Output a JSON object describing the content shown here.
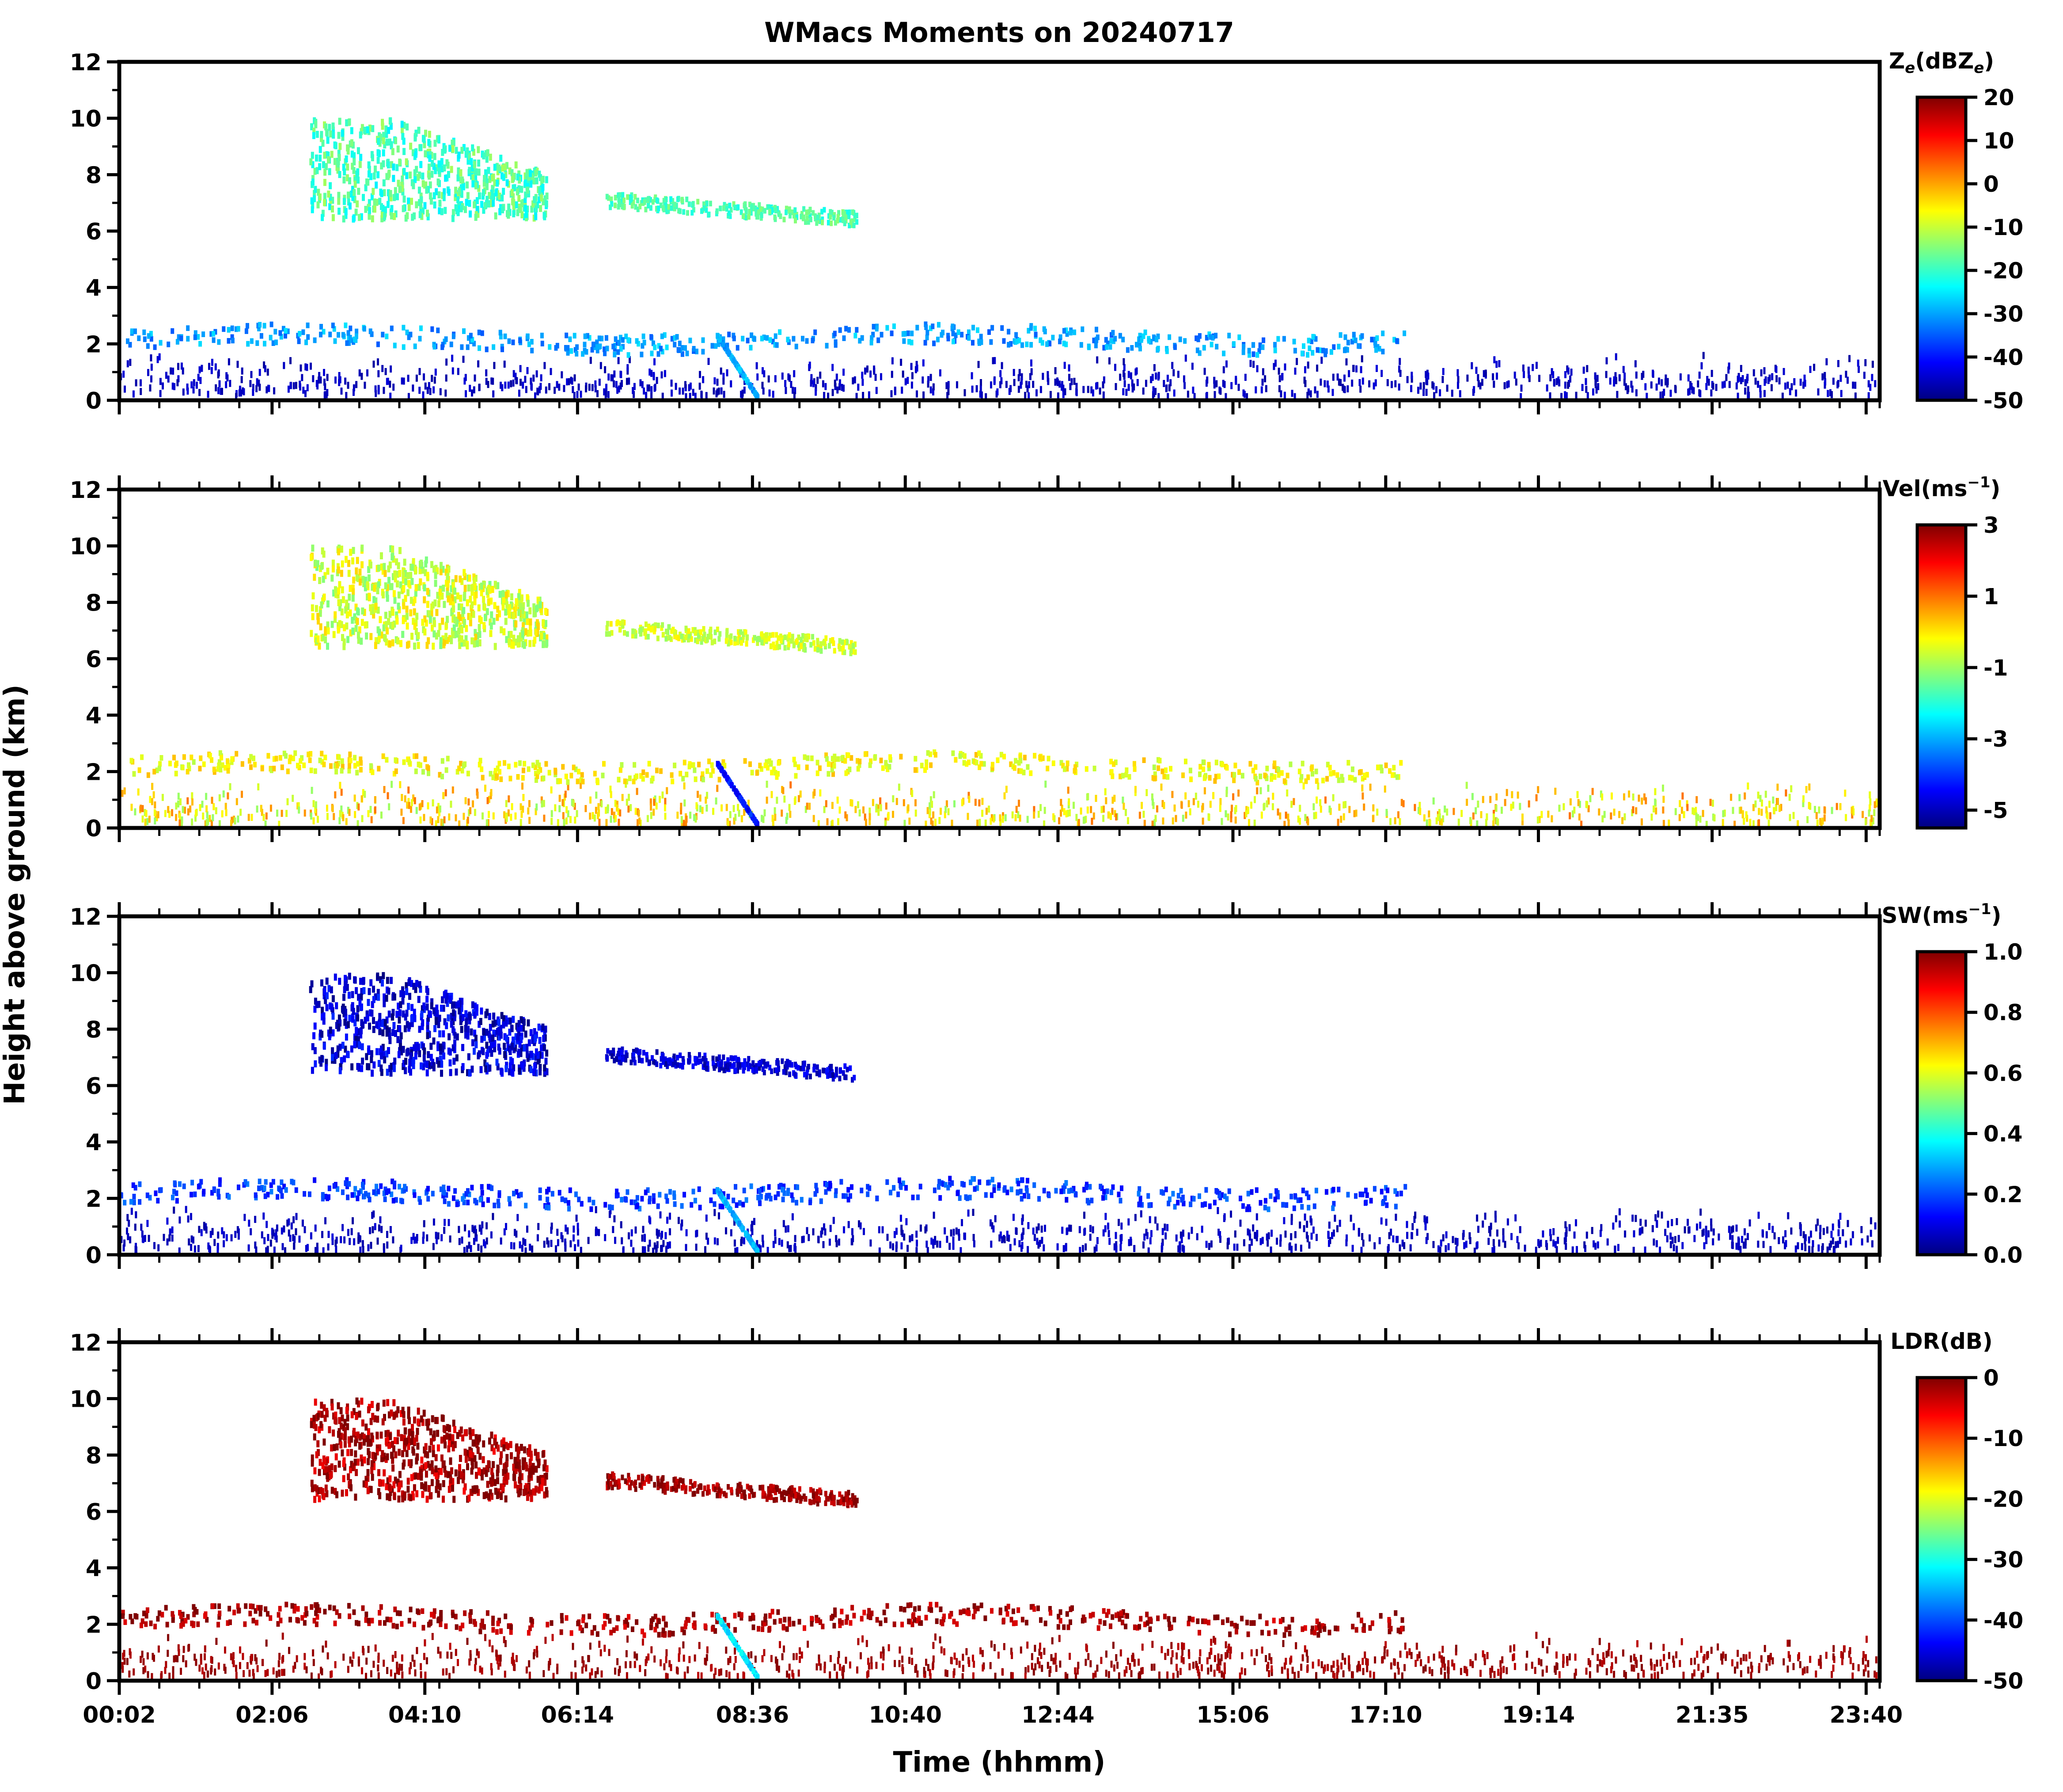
{
  "chart_data": {
    "type": "heatmap",
    "title": "WMacs Moments on 20240717",
    "xlabel": "Time (hhmm)",
    "ylabel": "Height above ground (km)",
    "x_tick_labels": [
      "00:02",
      "02:06",
      "04:10",
      "06:14",
      "08:36",
      "10:40",
      "12:44",
      "15:06",
      "17:10",
      "19:14",
      "21:35",
      "23:40"
    ],
    "x_tick_hours": [
      0.033,
      2.1,
      4.167,
      6.233,
      8.6,
      10.667,
      12.733,
      15.1,
      17.167,
      19.233,
      21.583,
      23.667
    ],
    "x_range_hours": [
      0.033,
      23.85
    ],
    "ylim": [
      0,
      12
    ],
    "y_ticks": [
      0,
      2,
      4,
      6,
      8,
      10,
      12
    ],
    "panels": [
      {
        "name": "Ze",
        "colorbar_label": "Z",
        "colorbar_sub": "e",
        "colorbar_mid": "(dBZ",
        "colorbar_sub2": "e",
        "colorbar_end": ")",
        "range": [
          -50,
          20
        ],
        "ticks": [
          "20",
          "10",
          "0",
          "-10",
          "-20",
          "-30",
          "-40",
          "-50"
        ]
      },
      {
        "name": "Vel",
        "colorbar_label": "Vel(ms",
        "colorbar_sup": "−1",
        "colorbar_end": ")",
        "range": [
          -5.5,
          3
        ],
        "ticks": [
          "3",
          "1",
          "-1",
          "-3",
          "-5"
        ]
      },
      {
        "name": "SW",
        "colorbar_label": "SW(ms",
        "colorbar_sup": "−1",
        "colorbar_end": ")",
        "range": [
          0,
          1
        ],
        "ticks": [
          "1.0",
          "0.8",
          "0.6",
          "0.4",
          "0.2",
          "0.0"
        ]
      },
      {
        "name": "LDR",
        "colorbar_label": "LDR(dB)",
        "range": [
          -50,
          0
        ],
        "ticks": [
          "0",
          "-10",
          "-20",
          "-30",
          "-40",
          "-50"
        ]
      }
    ],
    "colormap": "jet",
    "colormap_stops": [
      "#00007f",
      "#0000ff",
      "#007fff",
      "#00ffff",
      "#7fff7f",
      "#ffff00",
      "#ff7f00",
      "#ff0000",
      "#7f0000"
    ],
    "features": [
      {
        "desc": "upper cloud",
        "x": [
          2.6,
          5.8
        ],
        "y": [
          6.2,
          10
        ]
      },
      {
        "desc": "cloud tail",
        "x": [
          6.6,
          10.0
        ],
        "y": [
          6.0,
          7.2
        ]
      },
      {
        "desc": "mid layer",
        "x": [
          0.0,
          17.5
        ],
        "y": [
          1.6,
          2.9
        ]
      },
      {
        "desc": "boundary clutter",
        "x": [
          0.0,
          23.85
        ],
        "y": [
          0.0,
          1.4
        ]
      }
    ]
  }
}
